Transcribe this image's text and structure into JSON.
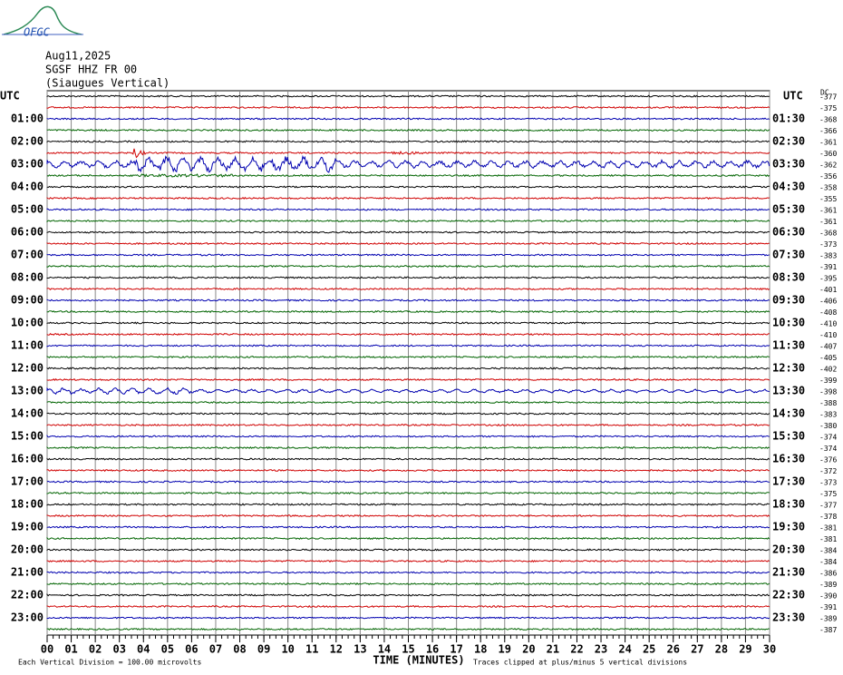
{
  "logo": "OFGC",
  "header": {
    "date": "Aug11,2025",
    "station": "SGSF HHZ FR 00",
    "component": "(Siaugues Vertical)"
  },
  "chart_data": {
    "type": "helicorder",
    "time_zone": "UTC",
    "left_labels": [
      "01:00",
      "02:00",
      "03:00",
      "04:00",
      "05:00",
      "06:00",
      "07:00",
      "08:00",
      "09:00",
      "10:00",
      "11:00",
      "12:00",
      "13:00",
      "14:00",
      "15:00",
      "16:00",
      "17:00",
      "18:00",
      "19:00",
      "20:00",
      "21:00",
      "22:00",
      "23:00"
    ],
    "right_labels": [
      "01:30",
      "02:30",
      "03:30",
      "04:30",
      "05:30",
      "06:30",
      "07:30",
      "08:30",
      "09:30",
      "10:30",
      "11:30",
      "12:30",
      "13:30",
      "14:30",
      "15:30",
      "16:30",
      "17:30",
      "18:30",
      "19:30",
      "20:30",
      "21:30",
      "22:30",
      "23:30"
    ],
    "dc_label": "DC",
    "dc_offsets": [
      -377,
      -375,
      -368,
      -366,
      -361,
      -360,
      -362,
      -356,
      -358,
      -355,
      -361,
      -361,
      -368,
      -373,
      -383,
      -391,
      -395,
      -401,
      -406,
      -408,
      -410,
      -410,
      -407,
      -405,
      -402,
      -399,
      -398,
      -388,
      -383,
      -380,
      -374,
      -374,
      -376,
      -372,
      -373,
      -375,
      -377,
      -378,
      -381,
      -381,
      -384,
      -384,
      -386,
      -389,
      -390,
      -391,
      -389,
      -387
    ],
    "trace_colors": [
      "#000000",
      "#d00000",
      "#0000b0",
      "#006400"
    ],
    "xlim": [
      0,
      30
    ],
    "xticks": [
      {
        "value": 0,
        "label": "00"
      },
      {
        "value": 1,
        "label": "01"
      },
      {
        "value": 2,
        "label": "02"
      },
      {
        "value": 3,
        "label": "03"
      },
      {
        "value": 4,
        "label": "04"
      },
      {
        "value": 5,
        "label": "05"
      },
      {
        "value": 6,
        "label": "06"
      },
      {
        "value": 7,
        "label": "07"
      },
      {
        "value": 8,
        "label": "08"
      },
      {
        "value": 9,
        "label": "09"
      },
      10,
      11,
      12,
      13,
      14,
      15,
      16,
      17,
      18,
      19,
      20,
      21,
      22,
      23,
      24,
      25,
      26,
      27,
      28,
      29,
      30
    ],
    "xlabel": "TIME (MINUTES)",
    "footer_left": "Each Vertical Division =  100.00 microvolts",
    "footer_right": "Traces clipped at plus/minus 5 vertical divisions"
  }
}
